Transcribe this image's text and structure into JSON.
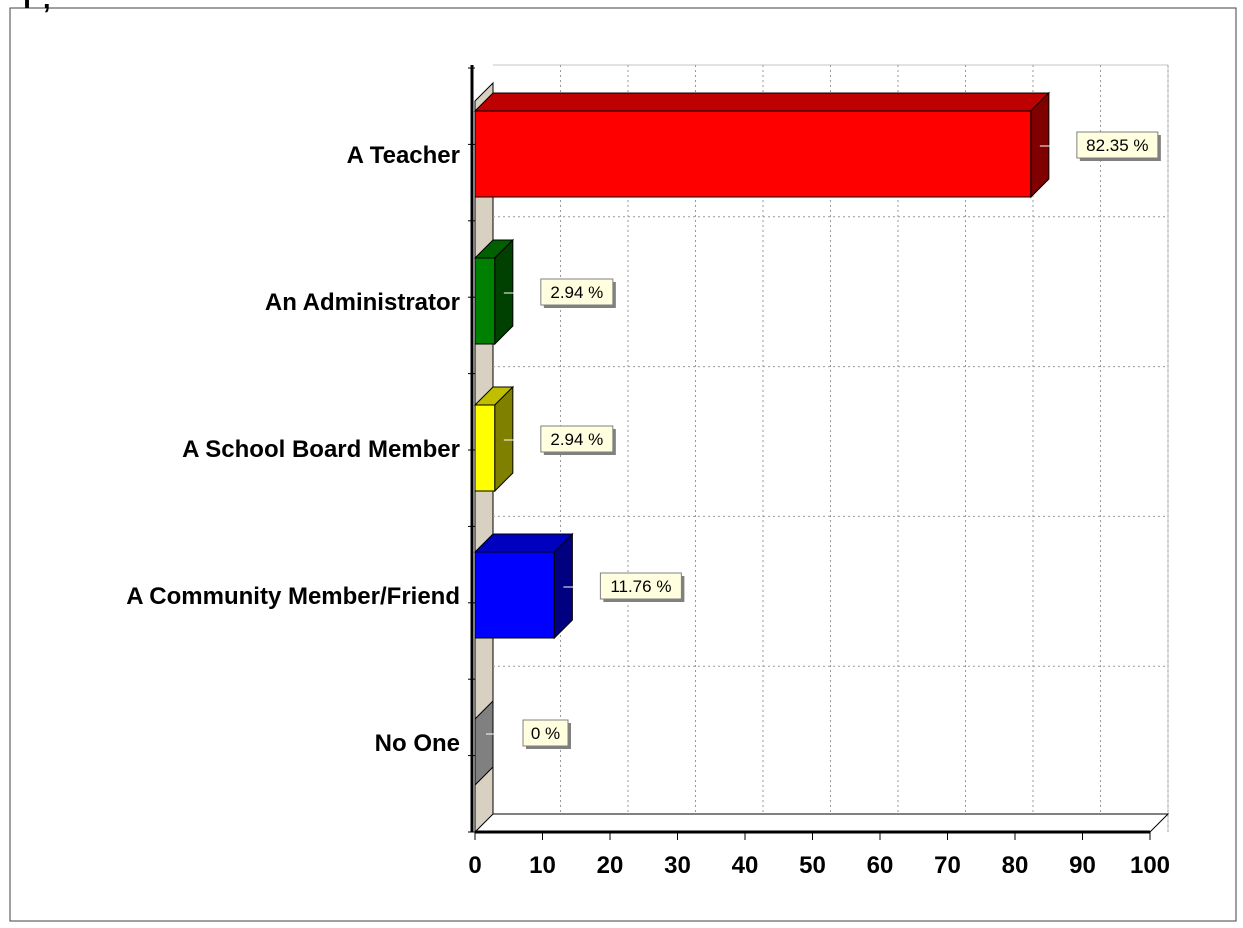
{
  "chart_data": {
    "type": "bar",
    "orientation": "horizontal",
    "style": "3d",
    "title": "Y                                                                                                              , ",
    "categories": [
      "A Teacher",
      "An Administrator",
      "A School Board Member",
      "A Community Member/Friend",
      "No One"
    ],
    "values": [
      82.35,
      2.94,
      2.94,
      11.76,
      0
    ],
    "data_labels": [
      "82.35 %",
      "2.94 %",
      "2.94 %",
      "11.76 %",
      "0 %"
    ],
    "colors": [
      "#ff0000",
      "#008000",
      "#ffff00",
      "#0000ff",
      "#808080"
    ],
    "xlim": [
      0,
      100
    ],
    "xticks": [
      "0",
      "10",
      "20",
      "30",
      "40",
      "50",
      "60",
      "70",
      "80",
      "90",
      "100"
    ],
    "grid": true,
    "legend": "none",
    "xlabel": "",
    "ylabel": ""
  }
}
